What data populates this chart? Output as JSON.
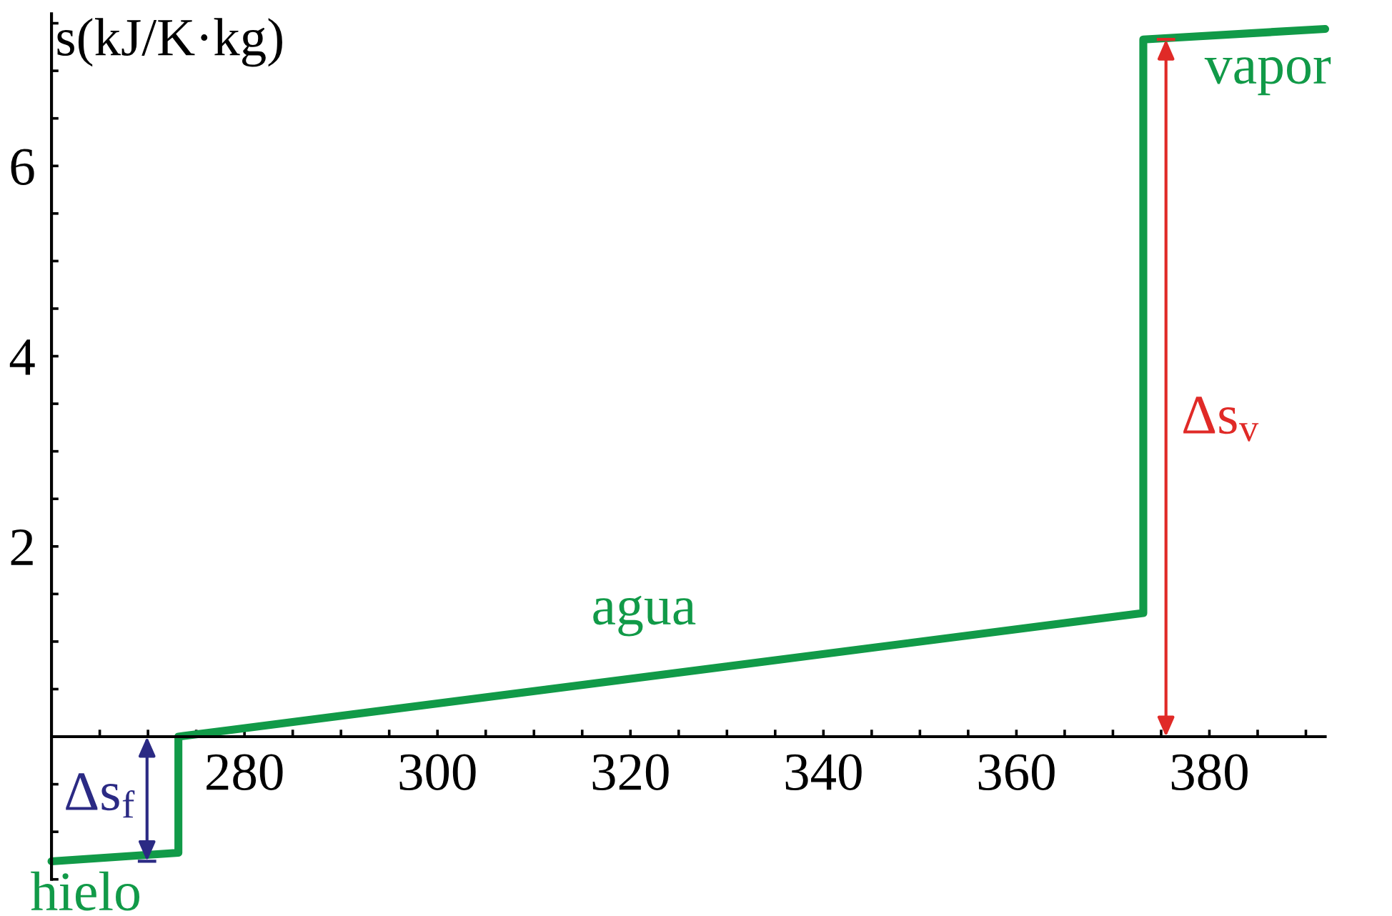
{
  "chart_data": {
    "type": "line",
    "ylabel": "s(kJ/K·kg)",
    "series": [
      {
        "color": "#119a48",
        "x": [
          260,
          273.15,
          273.15,
          373.15,
          373.15,
          392
        ],
        "values": [
          -1.31,
          -1.22,
          0,
          1.3,
          7.33,
          7.44
        ]
      }
    ],
    "xlim": [
      260,
      392
    ],
    "ylim": [
      -1.5,
      7.6
    ],
    "xticks": [
      {
        "value": 265,
        "label": null
      },
      {
        "value": 270,
        "label": null
      },
      {
        "value": 275,
        "label": null
      },
      280,
      {
        "value": 285,
        "label": null
      },
      {
        "value": 290,
        "label": null
      },
      {
        "value": 295,
        "label": null
      },
      300,
      {
        "value": 305,
        "label": null
      },
      {
        "value": 310,
        "label": null
      },
      {
        "value": 315,
        "label": null
      },
      320,
      {
        "value": 325,
        "label": null
      },
      {
        "value": 330,
        "label": null
      },
      {
        "value": 335,
        "label": null
      },
      340,
      {
        "value": 345,
        "label": null
      },
      {
        "value": 350,
        "label": null
      },
      {
        "value": 355,
        "label": null
      },
      360,
      {
        "value": 365,
        "label": null
      },
      {
        "value": 370,
        "label": null
      },
      {
        "value": 375,
        "label": null
      },
      380,
      {
        "value": 385,
        "label": null
      },
      {
        "value": 390,
        "label": null
      }
    ],
    "yticks": [
      {
        "value": -1.5,
        "label": null
      },
      {
        "value": -1,
        "label": null
      },
      {
        "value": -0.5,
        "label": null
      },
      {
        "value": 0.5,
        "label": null
      },
      {
        "value": 1,
        "label": null
      },
      {
        "value": 1.5,
        "label": null
      },
      2,
      {
        "value": 2.5,
        "label": null
      },
      {
        "value": 3,
        "label": null
      },
      {
        "value": 3.5,
        "label": null
      },
      4,
      {
        "value": 4.5,
        "label": null
      },
      {
        "value": 5,
        "label": null
      },
      {
        "value": 5.5,
        "label": null
      },
      6,
      {
        "value": 6.5,
        "label": null
      },
      {
        "value": 7,
        "label": null
      },
      {
        "value": 7.5,
        "label": null
      }
    ],
    "grid": false,
    "marker": "none",
    "line_style": "solid",
    "annotations": [
      "hielo",
      "agua",
      "vapor",
      "Δs$_{f}$",
      "Δs$_{v}$"
    ]
  }
}
